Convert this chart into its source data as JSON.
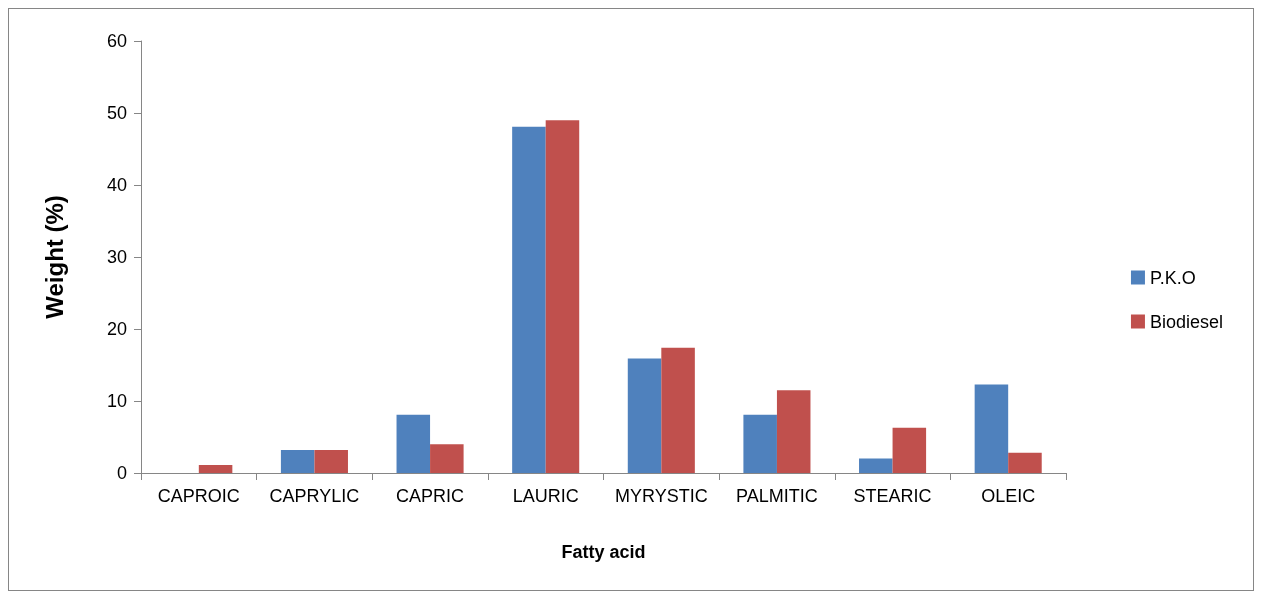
{
  "chart_data": {
    "type": "bar",
    "xlabel": "Fatty acid",
    "ylabel": "Weight (%)",
    "categories": [
      "CAPROIC",
      "CAPRYLIC",
      "CAPRIC",
      "LAURIC",
      "MYRYSTIC",
      "PALMITIC",
      "STEARIC",
      "OLEIC"
    ],
    "series": [
      {
        "name": "P.K.O",
        "color": "#4f81bd",
        "values": [
          0,
          3.2,
          8.1,
          48.1,
          15.9,
          8.1,
          2.0,
          12.3
        ]
      },
      {
        "name": "Biodiesel",
        "color": "#c0504d",
        "values": [
          1.1,
          3.2,
          4.0,
          49.0,
          17.4,
          11.5,
          6.3,
          2.8
        ]
      }
    ],
    "ylim": [
      0,
      60
    ],
    "yticks": [
      0,
      10,
      20,
      30,
      40,
      50,
      60
    ],
    "grid": false,
    "legend": "right"
  }
}
